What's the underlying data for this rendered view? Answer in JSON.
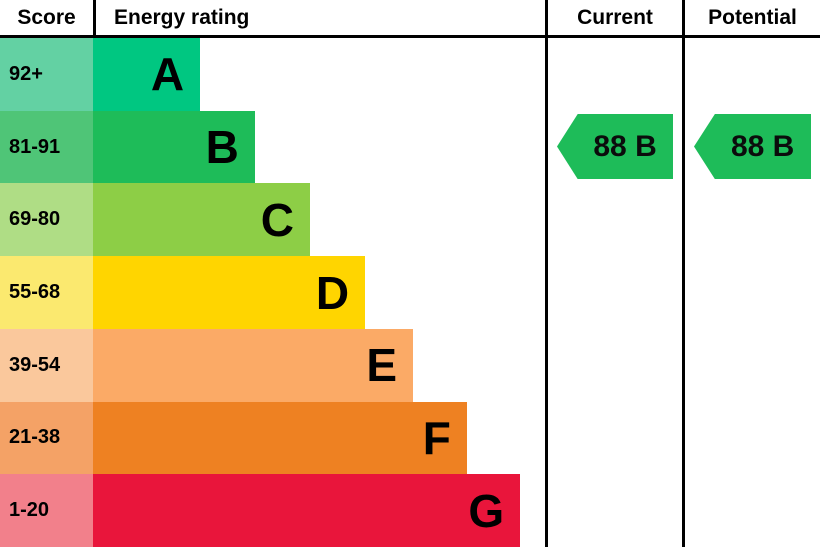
{
  "header": {
    "score": "Score",
    "energy_rating": "Energy rating",
    "current": "Current",
    "potential": "Potential"
  },
  "chart_data": {
    "type": "bar",
    "title": "EPC energy efficiency rating chart",
    "bands": [
      {
        "score": "92+",
        "letter": "A",
        "bar_color": "#00c781",
        "score_color": "#63d1a3",
        "width_pct": 23.7
      },
      {
        "score": "81-91",
        "letter": "B",
        "bar_color": "#1ebc59",
        "score_color": "#4fc577",
        "width_pct": 35.8
      },
      {
        "score": "69-80",
        "letter": "C",
        "bar_color": "#8dce46",
        "score_color": "#afdd85",
        "width_pct": 48.0
      },
      {
        "score": "55-68",
        "letter": "D",
        "bar_color": "#ffd500",
        "score_color": "#fbe96f",
        "width_pct": 60.2
      },
      {
        "score": "39-54",
        "letter": "E",
        "bar_color": "#fbaa66",
        "score_color": "#fac89c",
        "width_pct": 70.8
      },
      {
        "score": "21-38",
        "letter": "F",
        "bar_color": "#ee8122",
        "score_color": "#f4a266",
        "width_pct": 82.7
      },
      {
        "score": "1-20",
        "letter": "G",
        "bar_color": "#e9153b",
        "score_color": "#f2808b",
        "width_pct": 94.5
      }
    ],
    "current": {
      "value": "88 B",
      "band": "B",
      "band_index": 1,
      "arrow_color": "#1ebc59"
    },
    "potential": {
      "value": "88 B",
      "band": "B",
      "band_index": 1,
      "arrow_color": "#1ebc59"
    }
  }
}
